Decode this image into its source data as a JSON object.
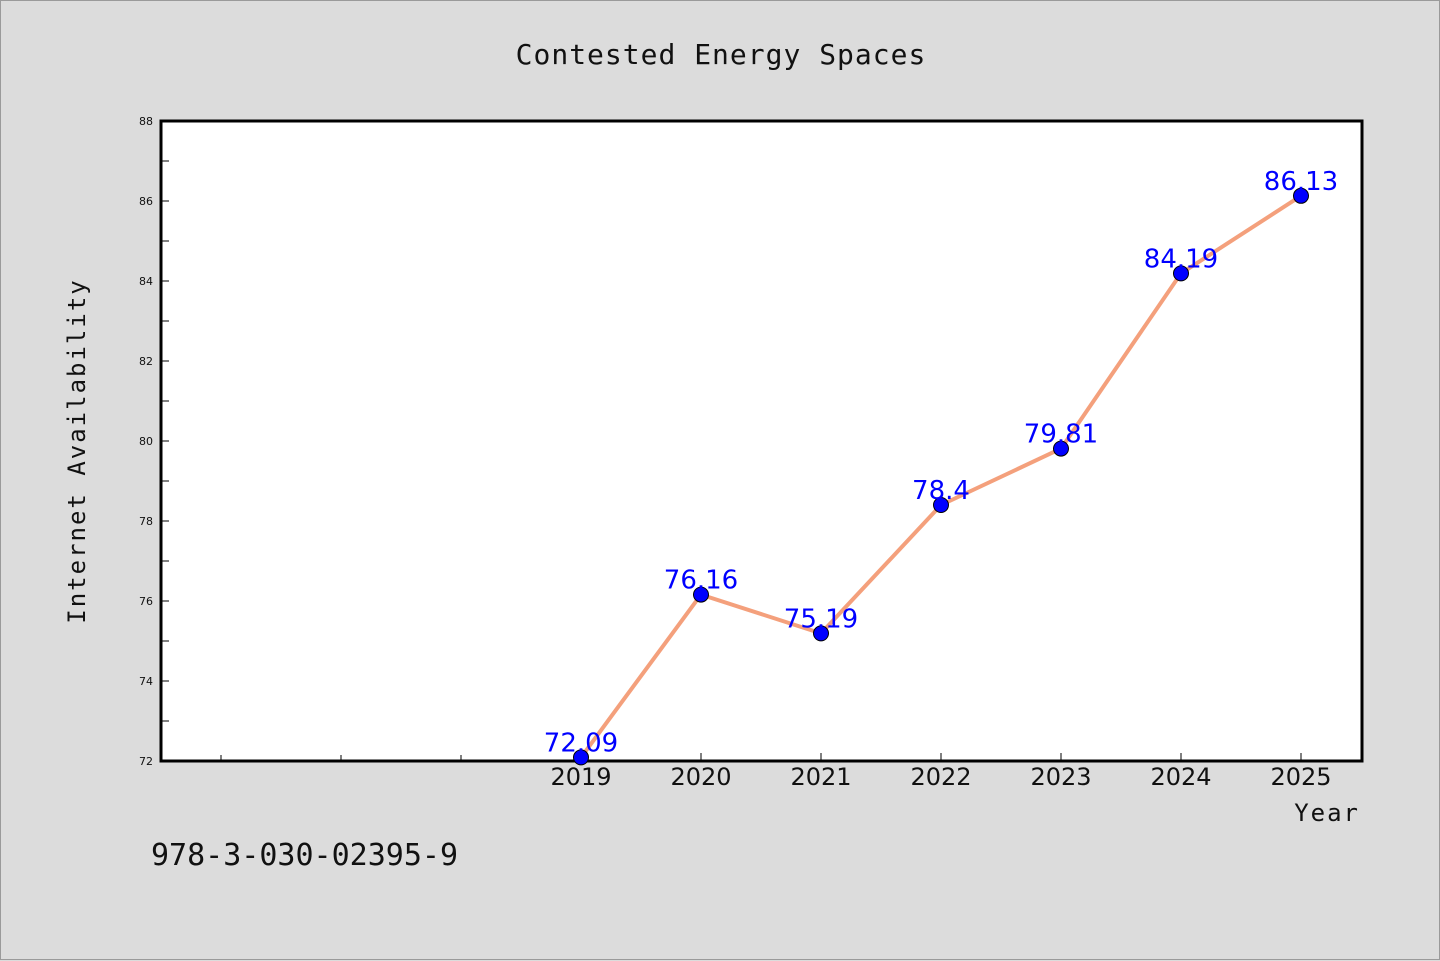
{
  "chart_data": {
    "type": "line",
    "title": "Contested Energy Spaces",
    "xlabel": "Year",
    "ylabel": "Internet Availability",
    "categories": [
      "2019",
      "2020",
      "2021",
      "2022",
      "2023",
      "2024",
      "2025"
    ],
    "values": [
      72.09,
      76.16,
      75.19,
      78.4,
      79.81,
      84.19,
      86.13
    ],
    "value_labels": [
      "72.09",
      "76.16",
      "75.19",
      "78.4",
      "79.81",
      "84.19",
      "86.13"
    ],
    "yticks": [
      72,
      74,
      76,
      78,
      80,
      82,
      84,
      86,
      88
    ],
    "ylim": [
      72,
      88
    ],
    "grid": false,
    "line_color": "#f4a07c",
    "marker_color": "#0000ff",
    "label_color": "#0000ff"
  },
  "footnote": "978-3-030-02395-9"
}
